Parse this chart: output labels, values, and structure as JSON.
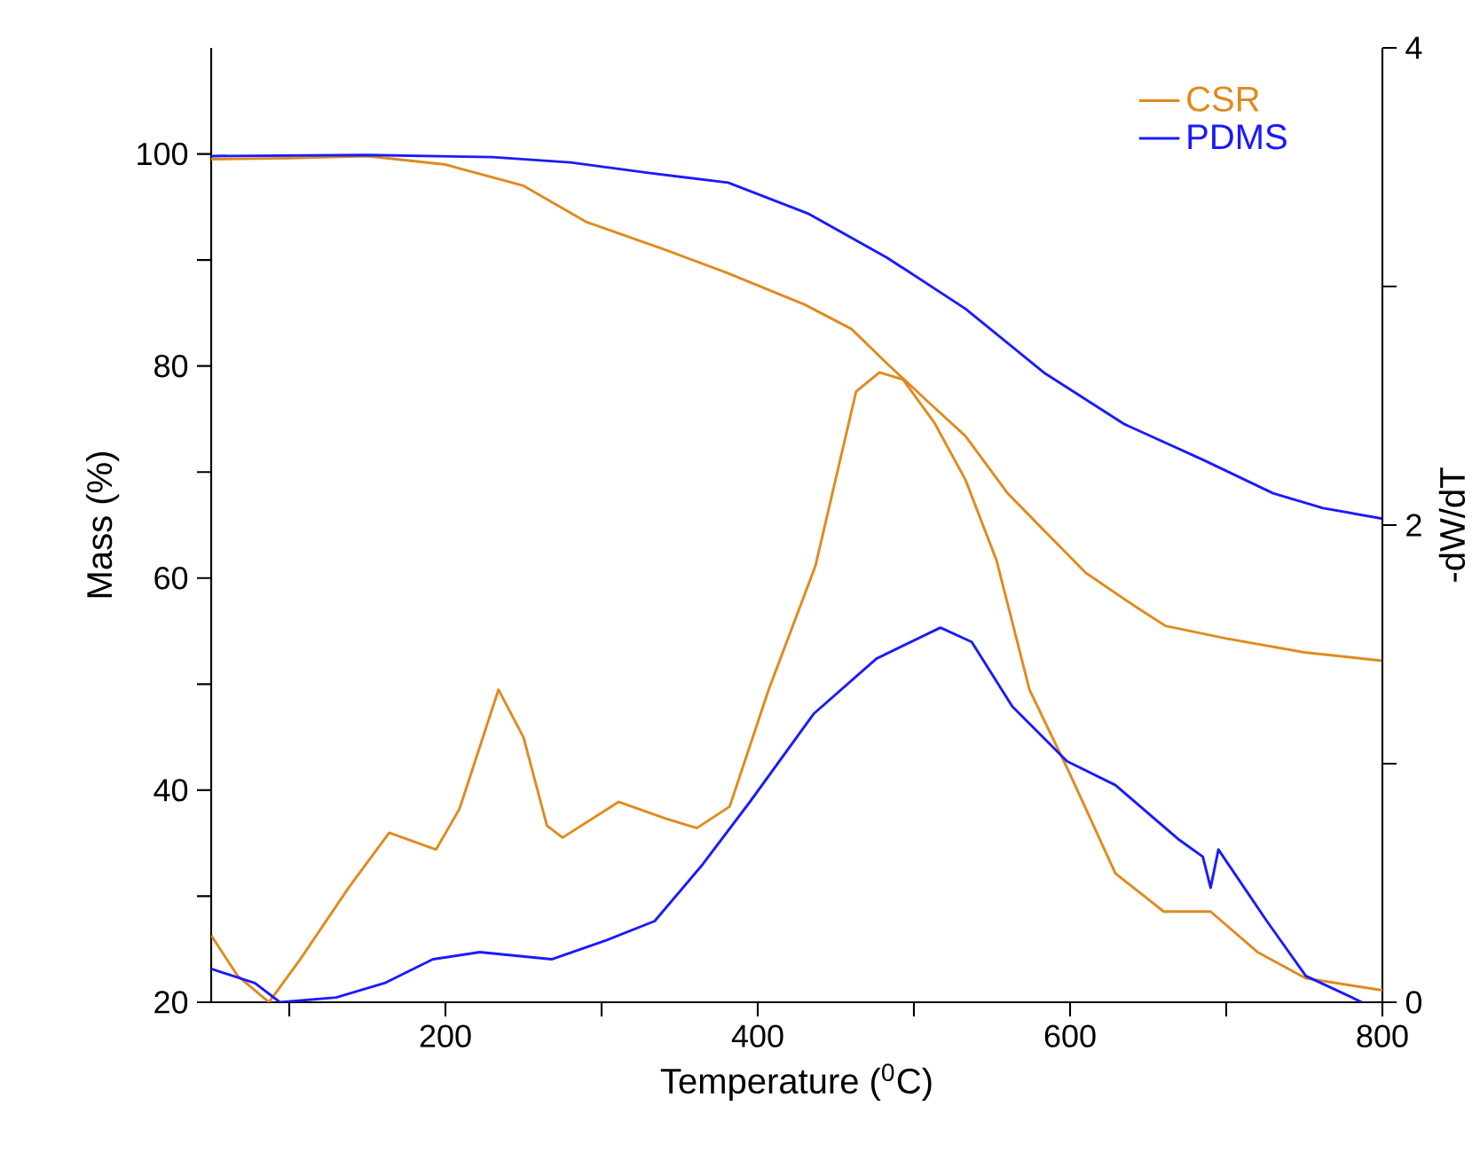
{
  "chart_data": {
    "type": "line",
    "xlabel": "Temperature ($^{0}$C)",
    "ylabel": "Mass (%)",
    "y2label": "-dW/dT",
    "xlim": [
      50,
      800
    ],
    "ylim": [
      20,
      110
    ],
    "y2lim": [
      0,
      4
    ],
    "xticks": [
      {
        "value": 100,
        "label": null
      },
      200,
      {
        "value": 300,
        "label": null
      },
      400,
      {
        "value": 500,
        "label": null
      },
      600,
      {
        "value": 700,
        "label": null
      },
      800
    ],
    "yticks": [
      20,
      {
        "value": 30,
        "label": null
      },
      40,
      {
        "value": 50,
        "label": null
      },
      60,
      {
        "value": 70,
        "label": null
      },
      80,
      {
        "value": 90,
        "label": null
      },
      100
    ],
    "y2ticks": [
      0,
      {
        "value": 1,
        "label": null
      },
      2,
      {
        "value": 3,
        "label": null
      },
      4
    ],
    "grid": false,
    "legend": "top right",
    "line_style": "solid",
    "series": [
      {
        "name": "CSR",
        "color": "#e08a1e",
        "x": [
          50,
          100,
          150,
          200,
          250,
          290,
          340,
          380,
          430,
          460,
          483,
          510,
          533,
          560,
          584,
          610,
          640,
          661,
          700,
          750,
          800
        ],
        "values": [
          99.5,
          99.6,
          99.8,
          99,
          97,
          93.6,
          91,
          88.8,
          85.8,
          83.5,
          80.2,
          76.5,
          73.4,
          68,
          64.4,
          60.5,
          57.5,
          55.5,
          54.3,
          53,
          52.2
        ]
      },
      {
        "name": "PDMS",
        "color": "#1a1aff",
        "x": [
          50,
          150,
          230,
          280,
          331,
          381,
          432,
          483,
          533,
          584,
          635,
          686,
          730,
          762,
          800
        ],
        "values": [
          99.8,
          99.9,
          99.7,
          99.2,
          98.2,
          97.3,
          94.4,
          90.2,
          85.4,
          79.3,
          74.5,
          71.1,
          68,
          66.6,
          65.6
        ]
      },
      {
        "color": "#e08a1e",
        "axis": "y2",
        "x": [
          50,
          67,
          87,
          107,
          138,
          164,
          194,
          209,
          234,
          250,
          265,
          275,
          311,
          341,
          361,
          382,
          407,
          437,
          463,
          478,
          493,
          513,
          533,
          553,
          574,
          599,
          629,
          660,
          690,
          720,
          751,
          800
        ],
        "values": [
          0.28,
          0.11,
          0,
          0.18,
          0.48,
          0.71,
          0.64,
          0.81,
          1.31,
          1.11,
          0.74,
          0.69,
          0.84,
          0.77,
          0.73,
          0.82,
          1.31,
          1.83,
          2.56,
          2.64,
          2.61,
          2.43,
          2.19,
          1.85,
          1.31,
          0.97,
          0.54,
          0.38,
          0.38,
          0.21,
          0.1,
          0.05
        ]
      },
      {
        "color": "#1a1aff",
        "axis": "y2",
        "x": [
          50,
          78,
          94,
          130,
          161,
          192,
          222,
          268,
          303,
          334,
          365,
          395,
          436,
          476,
          517,
          537,
          563,
          598,
          629,
          670,
          685,
          690,
          695,
          726,
          751,
          787
        ],
        "values": [
          0.14,
          0.08,
          0,
          0.02,
          0.08,
          0.18,
          0.21,
          0.18,
          0.26,
          0.34,
          0.58,
          0.84,
          1.21,
          1.44,
          1.57,
          1.51,
          1.24,
          1.01,
          0.91,
          0.68,
          0.61,
          0.48,
          0.64,
          0.34,
          0.11,
          0
        ]
      }
    ]
  }
}
